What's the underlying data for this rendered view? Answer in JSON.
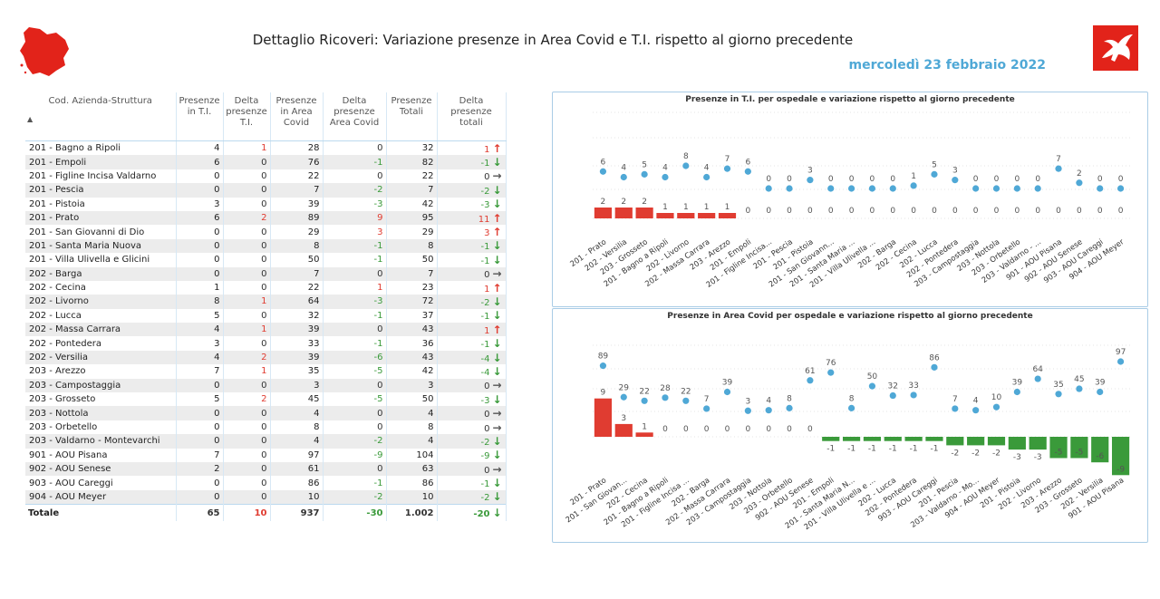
{
  "header": {
    "title": "Dettaglio Ricoveri: Variazione presenze in Area Covid e T.I. rispetto al giorno precedente",
    "date": "mercoledì 23 febbraio 2022",
    "logo_left_icon": "tuscany-map-icon",
    "logo_right_icon": "pegasus-emblem-icon"
  },
  "table": {
    "columns": [
      "Cod. Azienda-Struttura",
      "Presenze in T.I.",
      "Delta presenze T.I.",
      "Presenze in Area Covid",
      "Delta presenze Area Covid",
      "Presenze Totali",
      "Delta presenze totali"
    ],
    "sort_indicator": "▲",
    "rows": [
      {
        "name": "201 - Bagno a Ripoli",
        "ti": "4",
        "dti": "1",
        "covid": "28",
        "dcovid": "0",
        "tot": "32",
        "dtot": "1",
        "trend": "up"
      },
      {
        "name": "201 - Empoli",
        "ti": "6",
        "dti": "0",
        "covid": "76",
        "dcovid": "-1",
        "tot": "82",
        "dtot": "-1",
        "trend": "down"
      },
      {
        "name": "201 - Figline Incisa Valdarno",
        "ti": "0",
        "dti": "0",
        "covid": "22",
        "dcovid": "0",
        "tot": "22",
        "dtot": "0",
        "trend": "flat"
      },
      {
        "name": "201 - Pescia",
        "ti": "0",
        "dti": "0",
        "covid": "7",
        "dcovid": "-2",
        "tot": "7",
        "dtot": "-2",
        "trend": "down"
      },
      {
        "name": "201 - Pistoia",
        "ti": "3",
        "dti": "0",
        "covid": "39",
        "dcovid": "-3",
        "tot": "42",
        "dtot": "-3",
        "trend": "down"
      },
      {
        "name": "201 - Prato",
        "ti": "6",
        "dti": "2",
        "covid": "89",
        "dcovid": "9",
        "tot": "95",
        "dtot": "11",
        "trend": "up"
      },
      {
        "name": "201 - San Giovanni di Dio",
        "ti": "0",
        "dti": "0",
        "covid": "29",
        "dcovid": "3",
        "tot": "29",
        "dtot": "3",
        "trend": "up"
      },
      {
        "name": "201 - Santa Maria Nuova",
        "ti": "0",
        "dti": "0",
        "covid": "8",
        "dcovid": "-1",
        "tot": "8",
        "dtot": "-1",
        "trend": "down"
      },
      {
        "name": "201 - Villa Ulivella e Glicini",
        "ti": "0",
        "dti": "0",
        "covid": "50",
        "dcovid": "-1",
        "tot": "50",
        "dtot": "-1",
        "trend": "down"
      },
      {
        "name": "202 - Barga",
        "ti": "0",
        "dti": "0",
        "covid": "7",
        "dcovid": "0",
        "tot": "7",
        "dtot": "0",
        "trend": "flat"
      },
      {
        "name": "202 - Cecina",
        "ti": "1",
        "dti": "0",
        "covid": "22",
        "dcovid": "1",
        "tot": "23",
        "dtot": "1",
        "trend": "up"
      },
      {
        "name": "202 - Livorno",
        "ti": "8",
        "dti": "1",
        "covid": "64",
        "dcovid": "-3",
        "tot": "72",
        "dtot": "-2",
        "trend": "down"
      },
      {
        "name": "202 - Lucca",
        "ti": "5",
        "dti": "0",
        "covid": "32",
        "dcovid": "-1",
        "tot": "37",
        "dtot": "-1",
        "trend": "down"
      },
      {
        "name": "202 - Massa Carrara",
        "ti": "4",
        "dti": "1",
        "covid": "39",
        "dcovid": "0",
        "tot": "43",
        "dtot": "1",
        "trend": "up"
      },
      {
        "name": "202 - Pontedera",
        "ti": "3",
        "dti": "0",
        "covid": "33",
        "dcovid": "-1",
        "tot": "36",
        "dtot": "-1",
        "trend": "down"
      },
      {
        "name": "202 - Versilia",
        "ti": "4",
        "dti": "2",
        "covid": "39",
        "dcovid": "-6",
        "tot": "43",
        "dtot": "-4",
        "trend": "down"
      },
      {
        "name": "203 - Arezzo",
        "ti": "7",
        "dti": "1",
        "covid": "35",
        "dcovid": "-5",
        "tot": "42",
        "dtot": "-4",
        "trend": "down"
      },
      {
        "name": "203 - Campostaggia",
        "ti": "0",
        "dti": "0",
        "covid": "3",
        "dcovid": "0",
        "tot": "3",
        "dtot": "0",
        "trend": "flat"
      },
      {
        "name": "203 - Grosseto",
        "ti": "5",
        "dti": "2",
        "covid": "45",
        "dcovid": "-5",
        "tot": "50",
        "dtot": "-3",
        "trend": "down"
      },
      {
        "name": "203 - Nottola",
        "ti": "0",
        "dti": "0",
        "covid": "4",
        "dcovid": "0",
        "tot": "4",
        "dtot": "0",
        "trend": "flat"
      },
      {
        "name": "203 - Orbetello",
        "ti": "0",
        "dti": "0",
        "covid": "8",
        "dcovid": "0",
        "tot": "8",
        "dtot": "0",
        "trend": "flat"
      },
      {
        "name": "203 - Valdarno - Montevarchi",
        "ti": "0",
        "dti": "0",
        "covid": "4",
        "dcovid": "-2",
        "tot": "4",
        "dtot": "-2",
        "trend": "down"
      },
      {
        "name": "901 - AOU Pisana",
        "ti": "7",
        "dti": "0",
        "covid": "97",
        "dcovid": "-9",
        "tot": "104",
        "dtot": "-9",
        "trend": "down"
      },
      {
        "name": "902 - AOU Senese",
        "ti": "2",
        "dti": "0",
        "covid": "61",
        "dcovid": "0",
        "tot": "63",
        "dtot": "0",
        "trend": "flat"
      },
      {
        "name": "903 - AOU Careggi",
        "ti": "0",
        "dti": "0",
        "covid": "86",
        "dcovid": "-1",
        "tot": "86",
        "dtot": "-1",
        "trend": "down"
      },
      {
        "name": "904 - AOU Meyer",
        "ti": "0",
        "dti": "0",
        "covid": "10",
        "dcovid": "-2",
        "tot": "10",
        "dtot": "-2",
        "trend": "down"
      }
    ],
    "total": {
      "name": "Totale",
      "ti": "65",
      "dti": "10",
      "covid": "937",
      "dcovid": "-30",
      "tot": "1.002",
      "dtot": "-20",
      "trend": "down"
    },
    "colors": {
      "up": "#e03c31",
      "down": "#3a9a3a",
      "flat": "#555555"
    }
  },
  "chart_data": [
    {
      "type": "bar",
      "title": "Presenze in T.I. per ospedale e variazione rispetto al giorno precedente",
      "categories": [
        "201 - Prato",
        "202 - Versilia",
        "203 - Grosseto",
        "201 - Bagno a Ripoli",
        "202 - Livorno",
        "202 - Massa Carrara",
        "203 - Arezzo",
        "201 - Empoli",
        "201 - Figline Incisa...",
        "201 - Pescia",
        "201 - Pistoia",
        "201 - San Giovann...",
        "201 - Santa Maria ...",
        "201 - Villa Ulivella ...",
        "202 - Barga",
        "202 - Cecina",
        "202 - Lucca",
        "202 - Pontedera",
        "203 - Campostaggia",
        "203 - Nottola",
        "203 - Orbetello",
        "203 - Valdarno - ...",
        "901 - AOU Pisana",
        "902 - AOU Senese",
        "903 - AOU Careggi",
        "904 - AOU Meyer"
      ],
      "series": [
        {
          "name": "",
          "kind": "points",
          "color": "#4fa8d6",
          "values": [
            6,
            4,
            5,
            4,
            8,
            4,
            7,
            6,
            0,
            0,
            3,
            0,
            0,
            0,
            0,
            1,
            5,
            3,
            0,
            0,
            0,
            0,
            7,
            2,
            0,
            0
          ]
        },
        {
          "name": "",
          "kind": "bars",
          "color": "#e03c31",
          "values": [
            2,
            2,
            2,
            1,
            1,
            1,
            1,
            0,
            0,
            0,
            0,
            0,
            0,
            0,
            0,
            0,
            0,
            0,
            0,
            0,
            0,
            0,
            0,
            0,
            0,
            0
          ]
        }
      ],
      "grid": true
    },
    {
      "type": "bar",
      "title": "Presenze in Area Covid per ospedale e variazione rispetto al giorno precedente",
      "categories": [
        "201 - Prato",
        "201 - San Giovan...",
        "202 - Cecina",
        "201 - Bagno a Ripoli",
        "201 - Figline Incisa ...",
        "202 - Barga",
        "202 - Massa Carrara",
        "203 - Campostaggia",
        "203 - Nottola",
        "203 - Orbetello",
        "902 - AOU Senese",
        "201 - Empoli",
        "201 - Santa Maria N...",
        "201 - Villa Ulivella e ...",
        "202 - Lucca",
        "202 - Pontedera",
        "903 - AOU Careggi",
        "201 - Pescia",
        "203 - Valdarno - Mo...",
        "904 - AOU Meyer",
        "201 - Pistoia",
        "202 - Livorno",
        "203 - Arezzo",
        "203 - Grosseto",
        "202 - Versilia",
        "901 - AOU Pisana"
      ],
      "series": [
        {
          "name": "",
          "kind": "points",
          "color": "#4fa8d6",
          "values": [
            89,
            29,
            22,
            28,
            22,
            7,
            39,
            3,
            4,
            8,
            61,
            76,
            8,
            50,
            32,
            33,
            86,
            7,
            4,
            10,
            39,
            64,
            35,
            45,
            39,
            97
          ]
        },
        {
          "name": "",
          "kind": "bars",
          "color_pos": "#e03c31",
          "color_neg": "#3a9a3a",
          "values": [
            9,
            3,
            1,
            0,
            0,
            0,
            0,
            0,
            0,
            0,
            0,
            -1,
            -1,
            -1,
            -1,
            -1,
            -1,
            -2,
            -2,
            -2,
            -3,
            -3,
            -5,
            -5,
            -6,
            -9
          ]
        }
      ],
      "grid": true
    }
  ]
}
